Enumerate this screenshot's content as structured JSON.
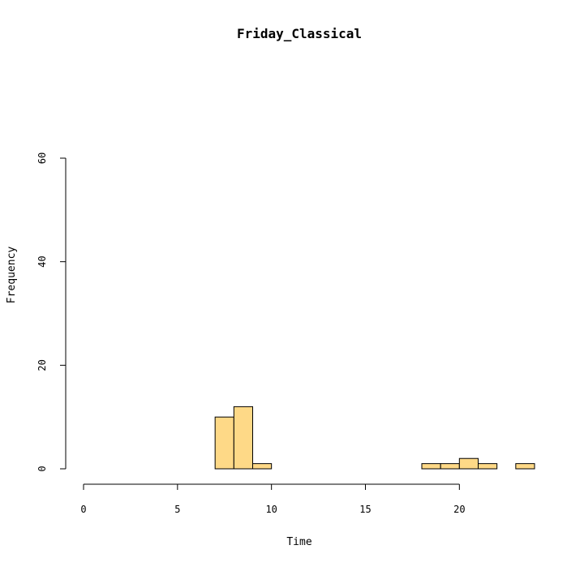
{
  "chart_data": {
    "type": "bar",
    "title": "Friday_Classical",
    "xlabel": "Time",
    "ylabel": "Frequency",
    "xlim": [
      0,
      24
    ],
    "ylim": [
      0,
      60
    ],
    "x_ticks": [
      "0",
      "5",
      "10",
      "15",
      "20"
    ],
    "y_ticks": [
      "0",
      "20",
      "40",
      "60"
    ],
    "bin_width": 1,
    "bins": [
      {
        "start": 0,
        "count": 0
      },
      {
        "start": 1,
        "count": 0
      },
      {
        "start": 2,
        "count": 0
      },
      {
        "start": 3,
        "count": 0
      },
      {
        "start": 4,
        "count": 0
      },
      {
        "start": 5,
        "count": 0
      },
      {
        "start": 6,
        "count": 0
      },
      {
        "start": 7,
        "count": 10
      },
      {
        "start": 8,
        "count": 12
      },
      {
        "start": 9,
        "count": 1
      },
      {
        "start": 10,
        "count": 0
      },
      {
        "start": 11,
        "count": 0
      },
      {
        "start": 12,
        "count": 0
      },
      {
        "start": 13,
        "count": 0
      },
      {
        "start": 14,
        "count": 0
      },
      {
        "start": 15,
        "count": 0
      },
      {
        "start": 16,
        "count": 0
      },
      {
        "start": 17,
        "count": 0
      },
      {
        "start": 18,
        "count": 1
      },
      {
        "start": 19,
        "count": 1
      },
      {
        "start": 20,
        "count": 2
      },
      {
        "start": 21,
        "count": 1
      },
      {
        "start": 22,
        "count": 0
      },
      {
        "start": 23,
        "count": 1
      }
    ],
    "bar_color": "#fed987",
    "grid": false,
    "legend": "none"
  }
}
